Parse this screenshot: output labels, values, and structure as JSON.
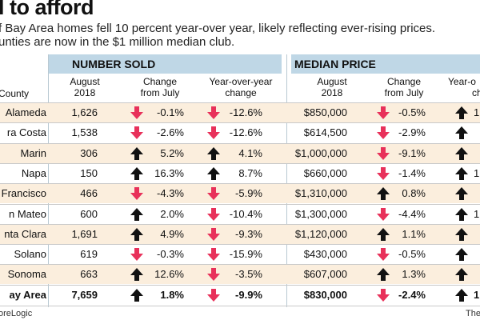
{
  "title": "l to afford",
  "subtitle_line1": "f Bay Area homes fell 10 percent year-over year, likely reflecting ever-rising prices.",
  "subtitle_line2": "unties are now in the $1 million median club.",
  "sections": {
    "sold": "NUMBER SOLD",
    "price": "MEDIAN PRICE"
  },
  "headers": {
    "county": "County",
    "sold_august": [
      "August",
      "2018"
    ],
    "sold_change": [
      "Change",
      "from July"
    ],
    "sold_yoy": [
      "Year-over-year",
      "change"
    ],
    "price_august": [
      "August",
      "2018"
    ],
    "price_change": [
      "Change",
      "from July"
    ],
    "price_yoy": [
      "Year-o",
      "ch"
    ]
  },
  "colors": {
    "up_arrow": "#111111",
    "down_arrow": "#e8315a",
    "header_band": "#bfd7e6",
    "row_shade": "#fbeedd"
  },
  "rows": [
    {
      "county": "Alameda",
      "sold": "1,626",
      "sold_chg": "-0.1%",
      "sold_chg_dir": "down",
      "sold_yoy": "-12.6%",
      "sold_yoy_dir": "down",
      "price": "$850,000",
      "price_chg": "-0.5%",
      "price_chg_dir": "down",
      "price_yoy": "1",
      "price_yoy_dir": "up"
    },
    {
      "county": "ra Costa",
      "sold": "1,538",
      "sold_chg": "-2.6%",
      "sold_chg_dir": "down",
      "sold_yoy": "-12.6%",
      "sold_yoy_dir": "down",
      "price": "$614,500",
      "price_chg": "-2.9%",
      "price_chg_dir": "down",
      "price_yoy": "",
      "price_yoy_dir": "up"
    },
    {
      "county": "Marin",
      "sold": "306",
      "sold_chg": "5.2%",
      "sold_chg_dir": "up",
      "sold_yoy": "4.1%",
      "sold_yoy_dir": "up",
      "price": "$1,000,000",
      "price_chg": "-9.1%",
      "price_chg_dir": "down",
      "price_yoy": "",
      "price_yoy_dir": "up"
    },
    {
      "county": "Napa",
      "sold": "150",
      "sold_chg": "16.3%",
      "sold_chg_dir": "up",
      "sold_yoy": "8.7%",
      "sold_yoy_dir": "up",
      "price": "$660,000",
      "price_chg": "-1.4%",
      "price_chg_dir": "down",
      "price_yoy": "1",
      "price_yoy_dir": "up"
    },
    {
      "county": "Francisco",
      "sold": "466",
      "sold_chg": "-4.3%",
      "sold_chg_dir": "down",
      "sold_yoy": "-5.9%",
      "sold_yoy_dir": "down",
      "price": "$1,310,000",
      "price_chg": "0.8%",
      "price_chg_dir": "up",
      "price_yoy": "",
      "price_yoy_dir": "up"
    },
    {
      "county": "n Mateo",
      "sold": "600",
      "sold_chg": "2.0%",
      "sold_chg_dir": "up",
      "sold_yoy": "-10.4%",
      "sold_yoy_dir": "down",
      "price": "$1,300,000",
      "price_chg": "-4.4%",
      "price_chg_dir": "down",
      "price_yoy": "1",
      "price_yoy_dir": "up"
    },
    {
      "county": "nta Clara",
      "sold": "1,691",
      "sold_chg": "4.9%",
      "sold_chg_dir": "up",
      "sold_yoy": "-9.3%",
      "sold_yoy_dir": "down",
      "price": "$1,120,000",
      "price_chg": "1.1%",
      "price_chg_dir": "up",
      "price_yoy": "",
      "price_yoy_dir": "up"
    },
    {
      "county": "Solano",
      "sold": "619",
      "sold_chg": "-0.3%",
      "sold_chg_dir": "down",
      "sold_yoy": "-15.9%",
      "sold_yoy_dir": "down",
      "price": "$430,000",
      "price_chg": "-0.5%",
      "price_chg_dir": "down",
      "price_yoy": "",
      "price_yoy_dir": "up"
    },
    {
      "county": "Sonoma",
      "sold": "663",
      "sold_chg": "12.6%",
      "sold_chg_dir": "up",
      "sold_yoy": "-3.5%",
      "sold_yoy_dir": "down",
      "price": "$607,000",
      "price_chg": "1.3%",
      "price_chg_dir": "up",
      "price_yoy": "",
      "price_yoy_dir": "up"
    },
    {
      "county": "ay Area",
      "sold": "7,659",
      "sold_chg": "1.8%",
      "sold_chg_dir": "up",
      "sold_yoy": "-9.9%",
      "sold_yoy_dir": "down",
      "price": "$830,000",
      "price_chg": "-2.4%",
      "price_chg_dir": "down",
      "price_yoy": "1",
      "price_yoy_dir": "up",
      "total": true
    }
  ],
  "footer": {
    "source": "oreLogic",
    "credit": "The"
  }
}
